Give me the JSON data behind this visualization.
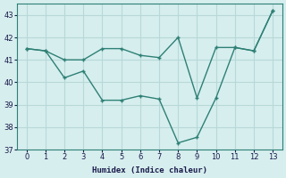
{
  "line1_x": [
    0,
    1,
    2,
    3,
    4,
    5,
    6,
    7,
    8,
    9,
    10,
    11,
    12,
    13
  ],
  "line1_y": [
    41.5,
    41.4,
    41.0,
    41.0,
    41.5,
    41.5,
    41.2,
    41.1,
    42.0,
    39.3,
    41.55,
    41.55,
    41.4,
    43.2
  ],
  "line2_x": [
    0,
    1,
    2,
    3,
    4,
    5,
    6,
    7,
    8,
    9,
    10,
    11,
    12,
    13
  ],
  "line2_y": [
    41.5,
    41.4,
    40.2,
    40.5,
    39.2,
    39.2,
    39.4,
    39.25,
    37.3,
    37.55,
    39.3,
    41.55,
    41.4,
    43.2
  ],
  "color": "#2e8075",
  "background_color": "#d6eeee",
  "grid_color": "#b8d8d8",
  "xlabel": "Humidex (Indice chaleur)",
  "ylim": [
    37,
    43.5
  ],
  "xlim": [
    -0.5,
    13.5
  ],
  "yticks": [
    37,
    38,
    39,
    40,
    41,
    42,
    43
  ],
  "xticks": [
    0,
    1,
    2,
    3,
    4,
    5,
    6,
    7,
    8,
    9,
    10,
    11,
    12,
    13
  ]
}
